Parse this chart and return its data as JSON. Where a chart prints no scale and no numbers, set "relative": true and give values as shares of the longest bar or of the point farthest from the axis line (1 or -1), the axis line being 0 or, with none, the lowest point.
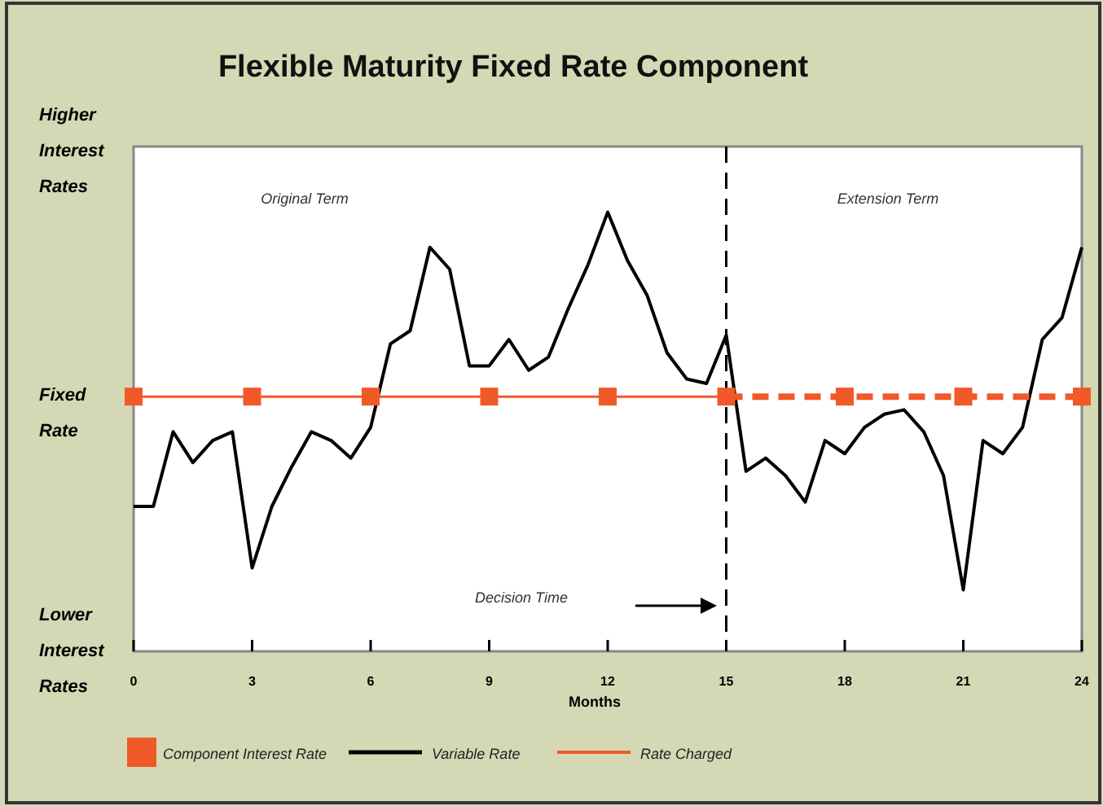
{
  "chart_data": {
    "type": "line",
    "title": "Flexible Maturity Fixed Rate Component",
    "xlabel": "Months",
    "relative": true,
    "xlim": [
      0,
      24
    ],
    "xticks": [
      0,
      3,
      6,
      9,
      12,
      15,
      18,
      21,
      24
    ],
    "grid": false,
    "legend": "bottom",
    "annotations": [
      "Higher Interest Rates",
      "Fixed Rate",
      "Lower Interest Rates",
      "Original Term",
      "Extension Term",
      "Decision Time"
    ],
    "ref_lines": [
      {
        "axis": "x",
        "value": 15,
        "color": "#000000",
        "line_style": "dashed"
      }
    ],
    "series": [
      {
        "name": "Component Interest Rate",
        "type": "scatter",
        "marker": "square",
        "color": "#f05a28",
        "x": [
          0,
          3,
          6,
          9,
          12,
          15,
          18,
          21,
          24
        ],
        "values": [
          0.58,
          0.58,
          0.58,
          0.58,
          0.58,
          0.58,
          0.58,
          0.58,
          0.58
        ]
      },
      {
        "name": "Variable Rate",
        "color": "#000000",
        "x": [
          0,
          0.5,
          1,
          1.5,
          2,
          2.5,
          3,
          3.5,
          4,
          4.5,
          5,
          5.5,
          6,
          6.5,
          7,
          7.5,
          8,
          8.5,
          9,
          9.5,
          10,
          10.5,
          11,
          11.5,
          12,
          12.5,
          13,
          13.5,
          14,
          14.5,
          15,
          15.5,
          16,
          16.5,
          17,
          17.5,
          18,
          18.5,
          19,
          19.5,
          20,
          20.5,
          21,
          21.5,
          22,
          22.5,
          23,
          23.5,
          24
        ],
        "values": [
          0.33,
          0.33,
          0.5,
          0.43,
          0.48,
          0.5,
          0.19,
          0.33,
          0.42,
          0.5,
          0.48,
          0.44,
          0.51,
          0.7,
          0.73,
          0.92,
          0.87,
          0.65,
          0.65,
          0.71,
          0.64,
          0.67,
          0.78,
          0.88,
          1,
          0.89,
          0.81,
          0.68,
          0.62,
          0.61,
          0.72,
          0.41,
          0.44,
          0.4,
          0.34,
          0.48,
          0.45,
          0.51,
          0.54,
          0.55,
          0.5,
          0.4,
          0.14,
          0.48,
          0.45,
          0.51,
          0.71,
          0.76,
          0.92
        ]
      },
      {
        "name": "Rate Charged",
        "color": "#f05a28",
        "line_style": "solid",
        "x": [
          0,
          15
        ],
        "values": [
          0.58,
          0.58
        ]
      },
      {
        "color": "#f05a28",
        "line_style": "dashed",
        "x": [
          15,
          24
        ],
        "values": [
          0.58,
          0.58
        ]
      }
    ]
  }
}
